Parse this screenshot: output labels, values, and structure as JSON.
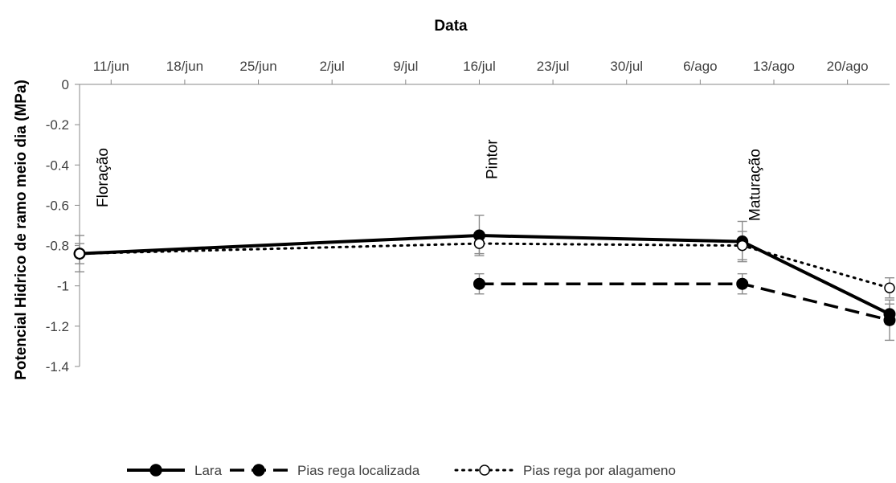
{
  "chart_data": {
    "type": "line",
    "title": "",
    "xlabel": "Data",
    "ylabel": "Potencial Hidrico de ramo meio dia (MPa)",
    "x_axis_position": "top",
    "x_ticks": [
      "11/jun",
      "18/jun",
      "25/jun",
      "2/jul",
      "9/jul",
      "16/jul",
      "23/jul",
      "30/jul",
      "6/ago",
      "13/ago",
      "20/ago"
    ],
    "x_tick_dates": [
      "2018-06-11",
      "2018-06-18",
      "2018-06-25",
      "2018-07-02",
      "2018-07-09",
      "2018-07-16",
      "2018-07-23",
      "2018-07-30",
      "2018-08-06",
      "2018-08-13",
      "2018-08-20"
    ],
    "x_range": [
      "2018-06-08",
      "2018-08-24"
    ],
    "y_ticks": [
      "0",
      "-0.2",
      "-0.4",
      "-0.6",
      "-0.8",
      "-1",
      "-1.2",
      "-1.4"
    ],
    "ylim": [
      -1.4,
      0
    ],
    "grid": false,
    "legend_position": "bottom",
    "annotations": [
      {
        "text": "Floração",
        "x": "2018-06-09"
      },
      {
        "text": "Pintor",
        "x": "2018-07-16"
      },
      {
        "text": "Maturação",
        "x": "2018-08-10"
      },
      {
        "text": "Maturação",
        "x": "2018-08-24"
      }
    ],
    "series": [
      {
        "name": "Lara",
        "color": "#000000",
        "line_style": "solid",
        "marker": "filled",
        "x": [
          "2018-06-08",
          "2018-07-16",
          "2018-08-10",
          "2018-08-24"
        ],
        "y": [
          -0.84,
          -0.75,
          -0.78,
          -1.14
        ],
        "error": [
          0.05,
          0.1,
          0.1,
          0.05
        ]
      },
      {
        "name": "Pias rega localizada",
        "color": "#000000",
        "line_style": "dashed",
        "marker": "filled",
        "x": [
          "2018-07-16",
          "2018-08-10",
          "2018-08-24"
        ],
        "y": [
          -0.99,
          -0.99,
          -1.17
        ],
        "error": [
          0.05,
          0.05,
          0.1
        ]
      },
      {
        "name": "Pias rega por alagameno",
        "color": "#000000",
        "line_style": "dotted",
        "marker": "open",
        "x": [
          "2018-06-08",
          "2018-07-16",
          "2018-08-10",
          "2018-08-24"
        ],
        "y": [
          -0.84,
          -0.79,
          -0.8,
          -1.01
        ],
        "error": [
          0.09,
          0.05,
          0.07,
          0.05
        ]
      }
    ]
  }
}
